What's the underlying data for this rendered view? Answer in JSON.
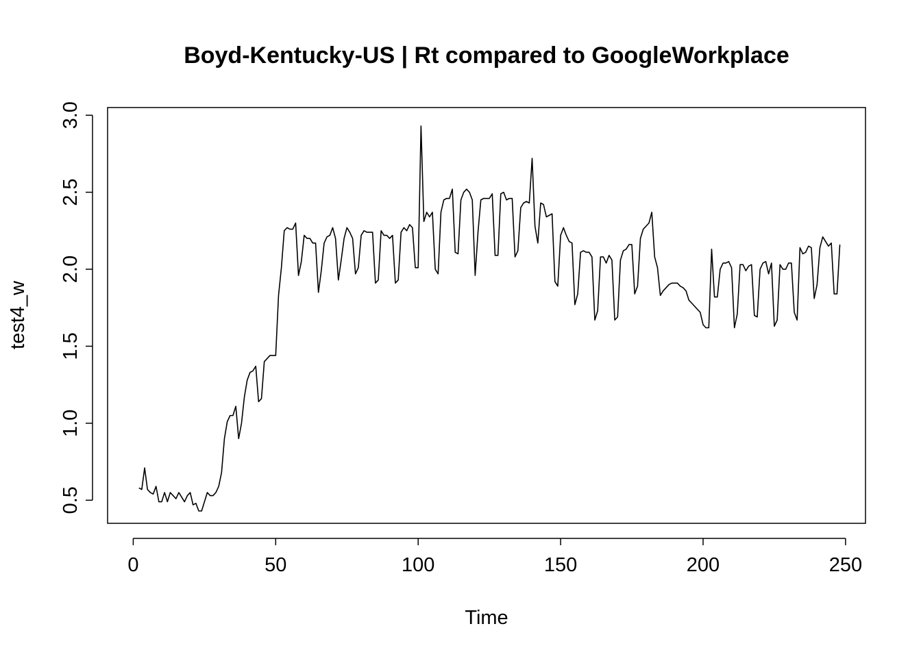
{
  "chart_data": {
    "type": "line",
    "title": "Boyd-Kentucky-US | Rt compared to GoogleWorkplace",
    "xlabel": "Time",
    "ylabel": "test4_w",
    "xlim": [
      -9,
      257
    ],
    "ylim": [
      0.35,
      3.05
    ],
    "x_ticks": [
      0,
      50,
      100,
      150,
      200,
      250
    ],
    "x_tick_labels": [
      "0",
      "50",
      "100",
      "150",
      "200",
      "250"
    ],
    "y_ticks": [
      0.5,
      1.0,
      1.5,
      2.0,
      2.5,
      3.0
    ],
    "y_tick_labels": [
      "0.5",
      "1.0",
      "1.5",
      "2.0",
      "2.5",
      "3.0"
    ],
    "grid": false,
    "legend": "none",
    "line_color": "#000000",
    "series": [
      {
        "x_start": 2,
        "values": [
          0.58,
          0.57,
          0.71,
          0.57,
          0.55,
          0.54,
          0.59,
          0.49,
          0.49,
          0.55,
          0.49,
          0.55,
          0.53,
          0.51,
          0.55,
          0.52,
          0.49,
          0.53,
          0.55,
          0.47,
          0.48,
          0.43,
          0.43,
          0.49,
          0.55,
          0.53,
          0.53,
          0.55,
          0.59,
          0.68,
          0.9,
          1.01,
          1.05,
          1.05,
          1.11,
          0.9,
          1.0,
          1.17,
          1.28,
          1.33,
          1.34,
          1.37,
          1.14,
          1.16,
          1.4,
          1.42,
          1.44,
          1.44,
          1.44,
          1.83,
          2.01,
          2.25,
          2.27,
          2.26,
          2.26,
          2.3,
          1.96,
          2.05,
          2.22,
          2.2,
          2.2,
          2.17,
          2.17,
          1.85,
          1.99,
          2.17,
          2.21,
          2.22,
          2.27,
          2.2,
          1.93,
          2.06,
          2.2,
          2.27,
          2.24,
          2.2,
          1.97,
          2.01,
          2.22,
          2.25,
          2.24,
          2.24,
          2.24,
          1.91,
          1.93,
          2.25,
          2.22,
          2.22,
          2.2,
          2.22,
          1.91,
          1.93,
          2.24,
          2.27,
          2.25,
          2.29,
          2.27,
          2.01,
          2.01,
          2.93,
          2.31,
          2.37,
          2.34,
          2.37,
          2.0,
          1.97,
          2.37,
          2.45,
          2.46,
          2.46,
          2.52,
          2.11,
          2.1,
          2.45,
          2.5,
          2.52,
          2.5,
          2.45,
          1.96,
          2.24,
          2.45,
          2.46,
          2.46,
          2.46,
          2.49,
          2.09,
          2.09,
          2.49,
          2.5,
          2.45,
          2.46,
          2.46,
          2.08,
          2.12,
          2.4,
          2.43,
          2.44,
          2.43,
          2.72,
          2.28,
          2.17,
          2.43,
          2.42,
          2.34,
          2.35,
          2.36,
          1.92,
          1.89,
          2.22,
          2.27,
          2.22,
          2.18,
          2.17,
          1.77,
          1.84,
          2.11,
          2.12,
          2.11,
          2.11,
          2.08,
          1.67,
          1.73,
          2.08,
          2.08,
          2.04,
          2.09,
          2.06,
          1.67,
          1.69,
          2.06,
          2.12,
          2.13,
          2.16,
          2.16,
          1.84,
          1.89,
          2.2,
          2.26,
          2.28,
          2.3,
          2.37,
          2.08,
          2.01,
          1.83,
          1.86,
          1.88,
          1.9,
          1.91,
          1.91,
          1.91,
          1.89,
          1.88,
          1.86,
          1.8,
          1.78,
          1.76,
          1.74,
          1.72,
          1.64,
          1.62,
          1.62,
          2.13,
          1.82,
          1.82,
          2.0,
          2.04,
          2.04,
          2.05,
          2.01,
          1.62,
          1.71,
          2.03,
          2.03,
          1.99,
          2.02,
          2.03,
          1.7,
          1.69,
          2.0,
          2.04,
          2.05,
          1.97,
          2.04,
          1.63,
          1.67,
          2.03,
          2.0,
          2.0,
          2.04,
          2.04,
          1.72,
          1.67,
          2.14,
          2.1,
          2.11,
          2.15,
          2.14,
          1.81,
          1.9,
          2.14,
          2.21,
          2.18,
          2.15,
          2.17,
          1.84,
          1.84,
          2.16
        ]
      }
    ]
  }
}
